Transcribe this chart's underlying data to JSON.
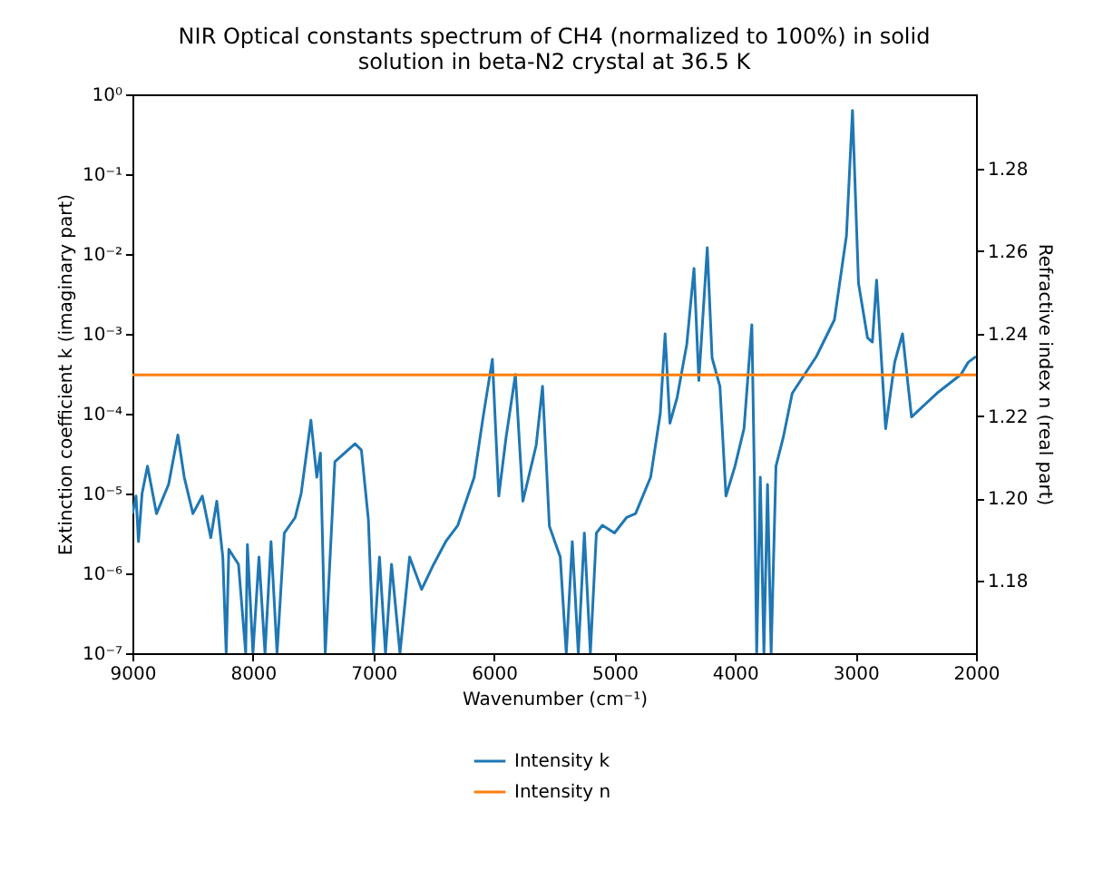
{
  "chart_data": {
    "type": "line",
    "title": "NIR Optical constants spectrum of CH4 (normalized to 100%) in solid solution in beta-N2 crystal at 36.5 K",
    "xlabel": "Wavenumber (cm⁻¹)",
    "ylabel": "Extinction coefficient k (imaginary part)",
    "y2label": "Refractive index n (real part)",
    "xlim": [
      9000,
      2000
    ],
    "xticks": [
      9000,
      8000,
      7000,
      6000,
      5000,
      4000,
      3000,
      2000
    ],
    "log": "y",
    "ylim": [
      1e-07,
      1
    ],
    "yticks": [
      {
        "value": 1e-07,
        "label": "10⁻⁷"
      },
      {
        "value": 1e-06,
        "label": "10⁻⁶"
      },
      {
        "value": 1e-05,
        "label": "10⁻⁵"
      },
      {
        "value": 0.0001,
        "label": "10⁻⁴"
      },
      {
        "value": 0.001,
        "label": "10⁻³"
      },
      {
        "value": 0.01,
        "label": "10⁻²"
      },
      {
        "value": 0.1,
        "label": "10⁻¹"
      },
      {
        "value": 1,
        "label": "10⁰"
      }
    ],
    "y2lim": [
      1.1624,
      1.2981
    ],
    "y2ticks": [
      {
        "value": 1.18,
        "label": "1.18"
      },
      {
        "value": 1.2,
        "label": "1.20"
      },
      {
        "value": 1.22,
        "label": "1.22"
      },
      {
        "value": 1.24,
        "label": "1.24"
      },
      {
        "value": 1.26,
        "label": "1.26"
      },
      {
        "value": 1.28,
        "label": "1.28"
      }
    ],
    "legend": "bottom",
    "line_style": "solid",
    "marker": "none",
    "series": [
      {
        "name": "Intensity k",
        "color": "#1f77b4",
        "x": [
          9000,
          8970,
          8950,
          8920,
          8875,
          8800,
          8700,
          8623,
          8570,
          8498,
          8420,
          8350,
          8300,
          8250,
          8222,
          8200,
          8120,
          8060,
          8046,
          8000,
          7950,
          7900,
          7850,
          7800,
          7740,
          7650,
          7600,
          7519,
          7470,
          7440,
          7400,
          7320,
          7153,
          7100,
          7042,
          7000,
          6950,
          6900,
          6850,
          6780,
          6700,
          6600,
          6500,
          6400,
          6300,
          6164,
          6090,
          6013,
          5960,
          5900,
          5822,
          5760,
          5650,
          5597,
          5540,
          5450,
          5400,
          5350,
          5300,
          5250,
          5200,
          5150,
          5100,
          5000,
          4900,
          4825,
          4700,
          4620,
          4580,
          4540,
          4480,
          4400,
          4340,
          4300,
          4230,
          4190,
          4125,
          4075,
          4000,
          3925,
          3860,
          3840,
          3820,
          3790,
          3760,
          3730,
          3700,
          3660,
          3600,
          3525,
          3325,
          3175,
          3075,
          3025,
          2975,
          2900,
          2860,
          2825,
          2750,
          2675,
          2610,
          2535,
          2325,
          2125,
          2065,
          2000
        ],
        "values": [
          5.6e-06,
          9.3e-06,
          2.5e-06,
          1e-05,
          2.2e-05,
          5.6e-06,
          1.3e-05,
          5.4e-05,
          1.6e-05,
          5.6e-06,
          9.3e-06,
          2.8e-06,
          8e-06,
          1.6e-06,
          1e-07,
          2e-06,
          1.3e-06,
          1e-07,
          2.3e-06,
          1e-07,
          1.6e-06,
          1e-07,
          2.5e-06,
          1e-07,
          3.2e-06,
          5e-06,
          1e-05,
          8.3e-05,
          1.6e-05,
          3.2e-05,
          1e-07,
          2.5e-05,
          4.2e-05,
          3.5e-05,
          4.7e-06,
          1e-07,
          1.6e-06,
          1e-07,
          1.3e-06,
          1e-07,
          1.6e-06,
          6.3e-07,
          1.3e-06,
          2.5e-06,
          4e-06,
          1.6e-05,
          9.1e-05,
          0.00048,
          9.3e-06,
          5e-05,
          0.00031,
          8e-06,
          4e-05,
          0.00022,
          3.9e-06,
          1.6e-06,
          1e-07,
          2.5e-06,
          1e-07,
          3.2e-06,
          1e-07,
          3.2e-06,
          4e-06,
          3.2e-06,
          5e-06,
          5.6e-06,
          1.6e-05,
          0.0001,
          0.001,
          7.6e-05,
          0.00016,
          0.00074,
          0.0066,
          0.00026,
          0.012,
          0.0005,
          0.00022,
          9.3e-06,
          2.2e-05,
          6.5e-05,
          0.0013,
          2e-05,
          1e-07,
          1.6e-05,
          1e-07,
          1.3e-05,
          1e-07,
          2.2e-05,
          5e-05,
          0.00018,
          0.00052,
          0.0015,
          0.017,
          0.63,
          0.0043,
          0.00089,
          0.00079,
          0.0047,
          6.5e-05,
          0.00044,
          0.001,
          9.1e-05,
          0.00018,
          0.00031,
          0.00044,
          0.00052
        ]
      },
      {
        "name": "Intensity n",
        "color": "#ff7f0e",
        "axis": "y2",
        "x": [
          9000,
          2000
        ],
        "values": [
          1.23,
          1.23
        ]
      }
    ]
  }
}
